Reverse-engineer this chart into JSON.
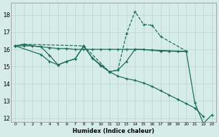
{
  "xlabel": "Humidex (Indice chaleur)",
  "xlim": [
    -0.5,
    23.5
  ],
  "ylim": [
    11.8,
    18.7
  ],
  "yticks": [
    12,
    13,
    14,
    15,
    16,
    17,
    18
  ],
  "xticks": [
    0,
    1,
    2,
    3,
    4,
    5,
    6,
    7,
    8,
    9,
    10,
    11,
    12,
    13,
    14,
    15,
    16,
    17,
    18,
    19,
    20,
    21,
    22,
    23
  ],
  "bg_color": "#d6ece8",
  "grid_color": "#c0d8d2",
  "line_color": "#1a6b5a",
  "series": [
    {
      "x": [
        0,
        1,
        2,
        3,
        4,
        5,
        6,
        7,
        8,
        9,
        10,
        11,
        12,
        13,
        14,
        15,
        16,
        17,
        18,
        19,
        20,
        21,
        22
      ],
      "y": [
        16.2,
        16.3,
        16.2,
        16.15,
        15.65,
        15.1,
        15.3,
        15.45,
        16.2,
        15.5,
        15.05,
        14.7,
        14.45,
        14.3,
        14.2,
        14.05,
        13.85,
        13.6,
        13.35,
        13.1,
        12.85,
        12.6,
        12.1
      ],
      "linestyle": "-"
    },
    {
      "x": [
        0,
        1,
        8,
        11,
        12,
        13,
        14,
        15,
        16,
        17,
        20
      ],
      "y": [
        16.2,
        16.3,
        16.2,
        14.7,
        14.8,
        16.9,
        18.2,
        17.45,
        17.4,
        16.75,
        15.9
      ],
      "linestyle": "--"
    },
    {
      "x": [
        0,
        1,
        2,
        3,
        4,
        5,
        6,
        7,
        8,
        9,
        10,
        11,
        12,
        13,
        14,
        15,
        16,
        17,
        18,
        19,
        20
      ],
      "y": [
        16.2,
        16.2,
        16.2,
        16.15,
        16.1,
        16.05,
        16.05,
        16.0,
        16.0,
        16.0,
        16.0,
        16.0,
        16.0,
        16.0,
        16.0,
        16.0,
        15.95,
        15.9,
        15.9,
        15.88,
        15.88
      ],
      "linestyle": "-"
    },
    {
      "comment": "Line 4: from x=20 drops sharply: 15.88 -> 12.9 -> 11.7 -> 12.2",
      "x": [
        20,
        21,
        22,
        23
      ],
      "y": [
        15.88,
        12.9,
        11.7,
        12.2
      ],
      "linestyle": "-"
    },
    {
      "comment": "Line 5: from x=0~16.2, goes through x=3~15.7, x=4~15.3, x=5~15.1, x=6~15.3, x=7~15.45, x=8~16.2, x=9~15.5, x=10~15.1, x=11~14.7, x=12~14.8, x=13~15.3, x=14~16.0, then to x=20~15.88",
      "x": [
        0,
        3,
        4,
        5,
        6,
        7,
        8,
        9,
        10,
        11,
        12,
        13,
        14,
        20
      ],
      "y": [
        16.2,
        15.7,
        15.3,
        15.1,
        15.3,
        15.45,
        16.2,
        15.5,
        15.1,
        14.7,
        14.8,
        15.3,
        16.0,
        15.88
      ],
      "linestyle": "-"
    }
  ]
}
